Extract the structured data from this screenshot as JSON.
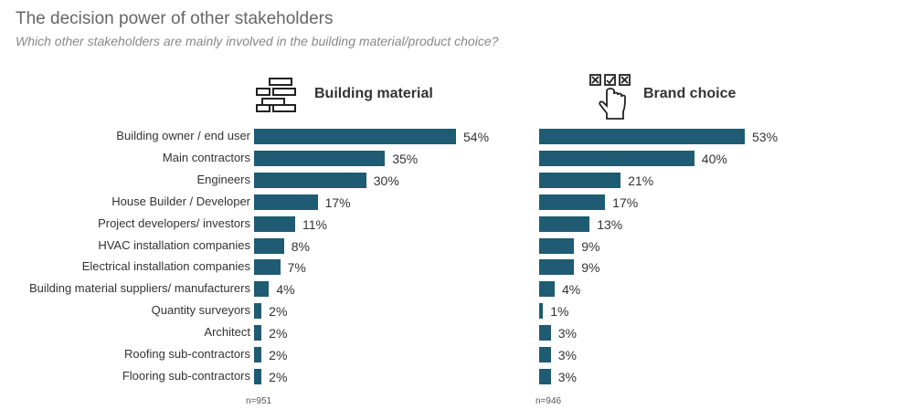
{
  "header": {
    "title": "The decision power of other stakeholders",
    "subtitle": "Which other stakeholders are mainly involved in the building material/product choice?"
  },
  "colors": {
    "bar": "#1f5b73"
  },
  "panels": [
    {
      "title": "Building material",
      "icon": "brick-wall-icon",
      "n": "n=951"
    },
    {
      "title": "Brand choice",
      "icon": "hand-checkbox-icon",
      "n": "n=946"
    }
  ],
  "chart_data": [
    {
      "type": "bar",
      "orientation": "horizontal",
      "title": "Building material",
      "categories": [
        "Building owner / end user",
        "Main contractors",
        "Engineers",
        "House Builder / Developer",
        "Project developers/ investors",
        "HVAC  installation companies",
        "Electrical installation companies",
        "Building material suppliers/ manufacturers",
        "Quantity surveyors",
        "Architect",
        "Roofing sub-contractors",
        "Flooring sub-contractors"
      ],
      "values": [
        54,
        35,
        30,
        17,
        11,
        8,
        7,
        4,
        2,
        2,
        2,
        2
      ],
      "labels": [
        "54%",
        "35%",
        "30%",
        "17%",
        "11%",
        "8%",
        "7%",
        "4%",
        "2%",
        "2%",
        "2%",
        "2%"
      ],
      "unit": "%",
      "grid": false
    },
    {
      "type": "bar",
      "orientation": "horizontal",
      "title": "Brand choice",
      "categories": [
        "Building owner / end user",
        "Main contractors",
        "Engineers",
        "House Builder / Developer",
        "Project developers/ investors",
        "HVAC  installation companies",
        "Electrical installation companies",
        "Building material suppliers/ manufacturers",
        "Quantity surveyors",
        "Architect",
        "Roofing sub-contractors",
        "Flooring sub-contractors"
      ],
      "values": [
        53,
        40,
        21,
        17,
        13,
        9,
        9,
        4,
        1,
        3,
        3,
        3
      ],
      "labels": [
        "53%",
        "40%",
        "21%",
        "17%",
        "13%",
        "9%",
        "9%",
        "4%",
        "1%",
        "3%",
        "3%",
        "3%"
      ],
      "unit": "%",
      "grid": false
    }
  ]
}
